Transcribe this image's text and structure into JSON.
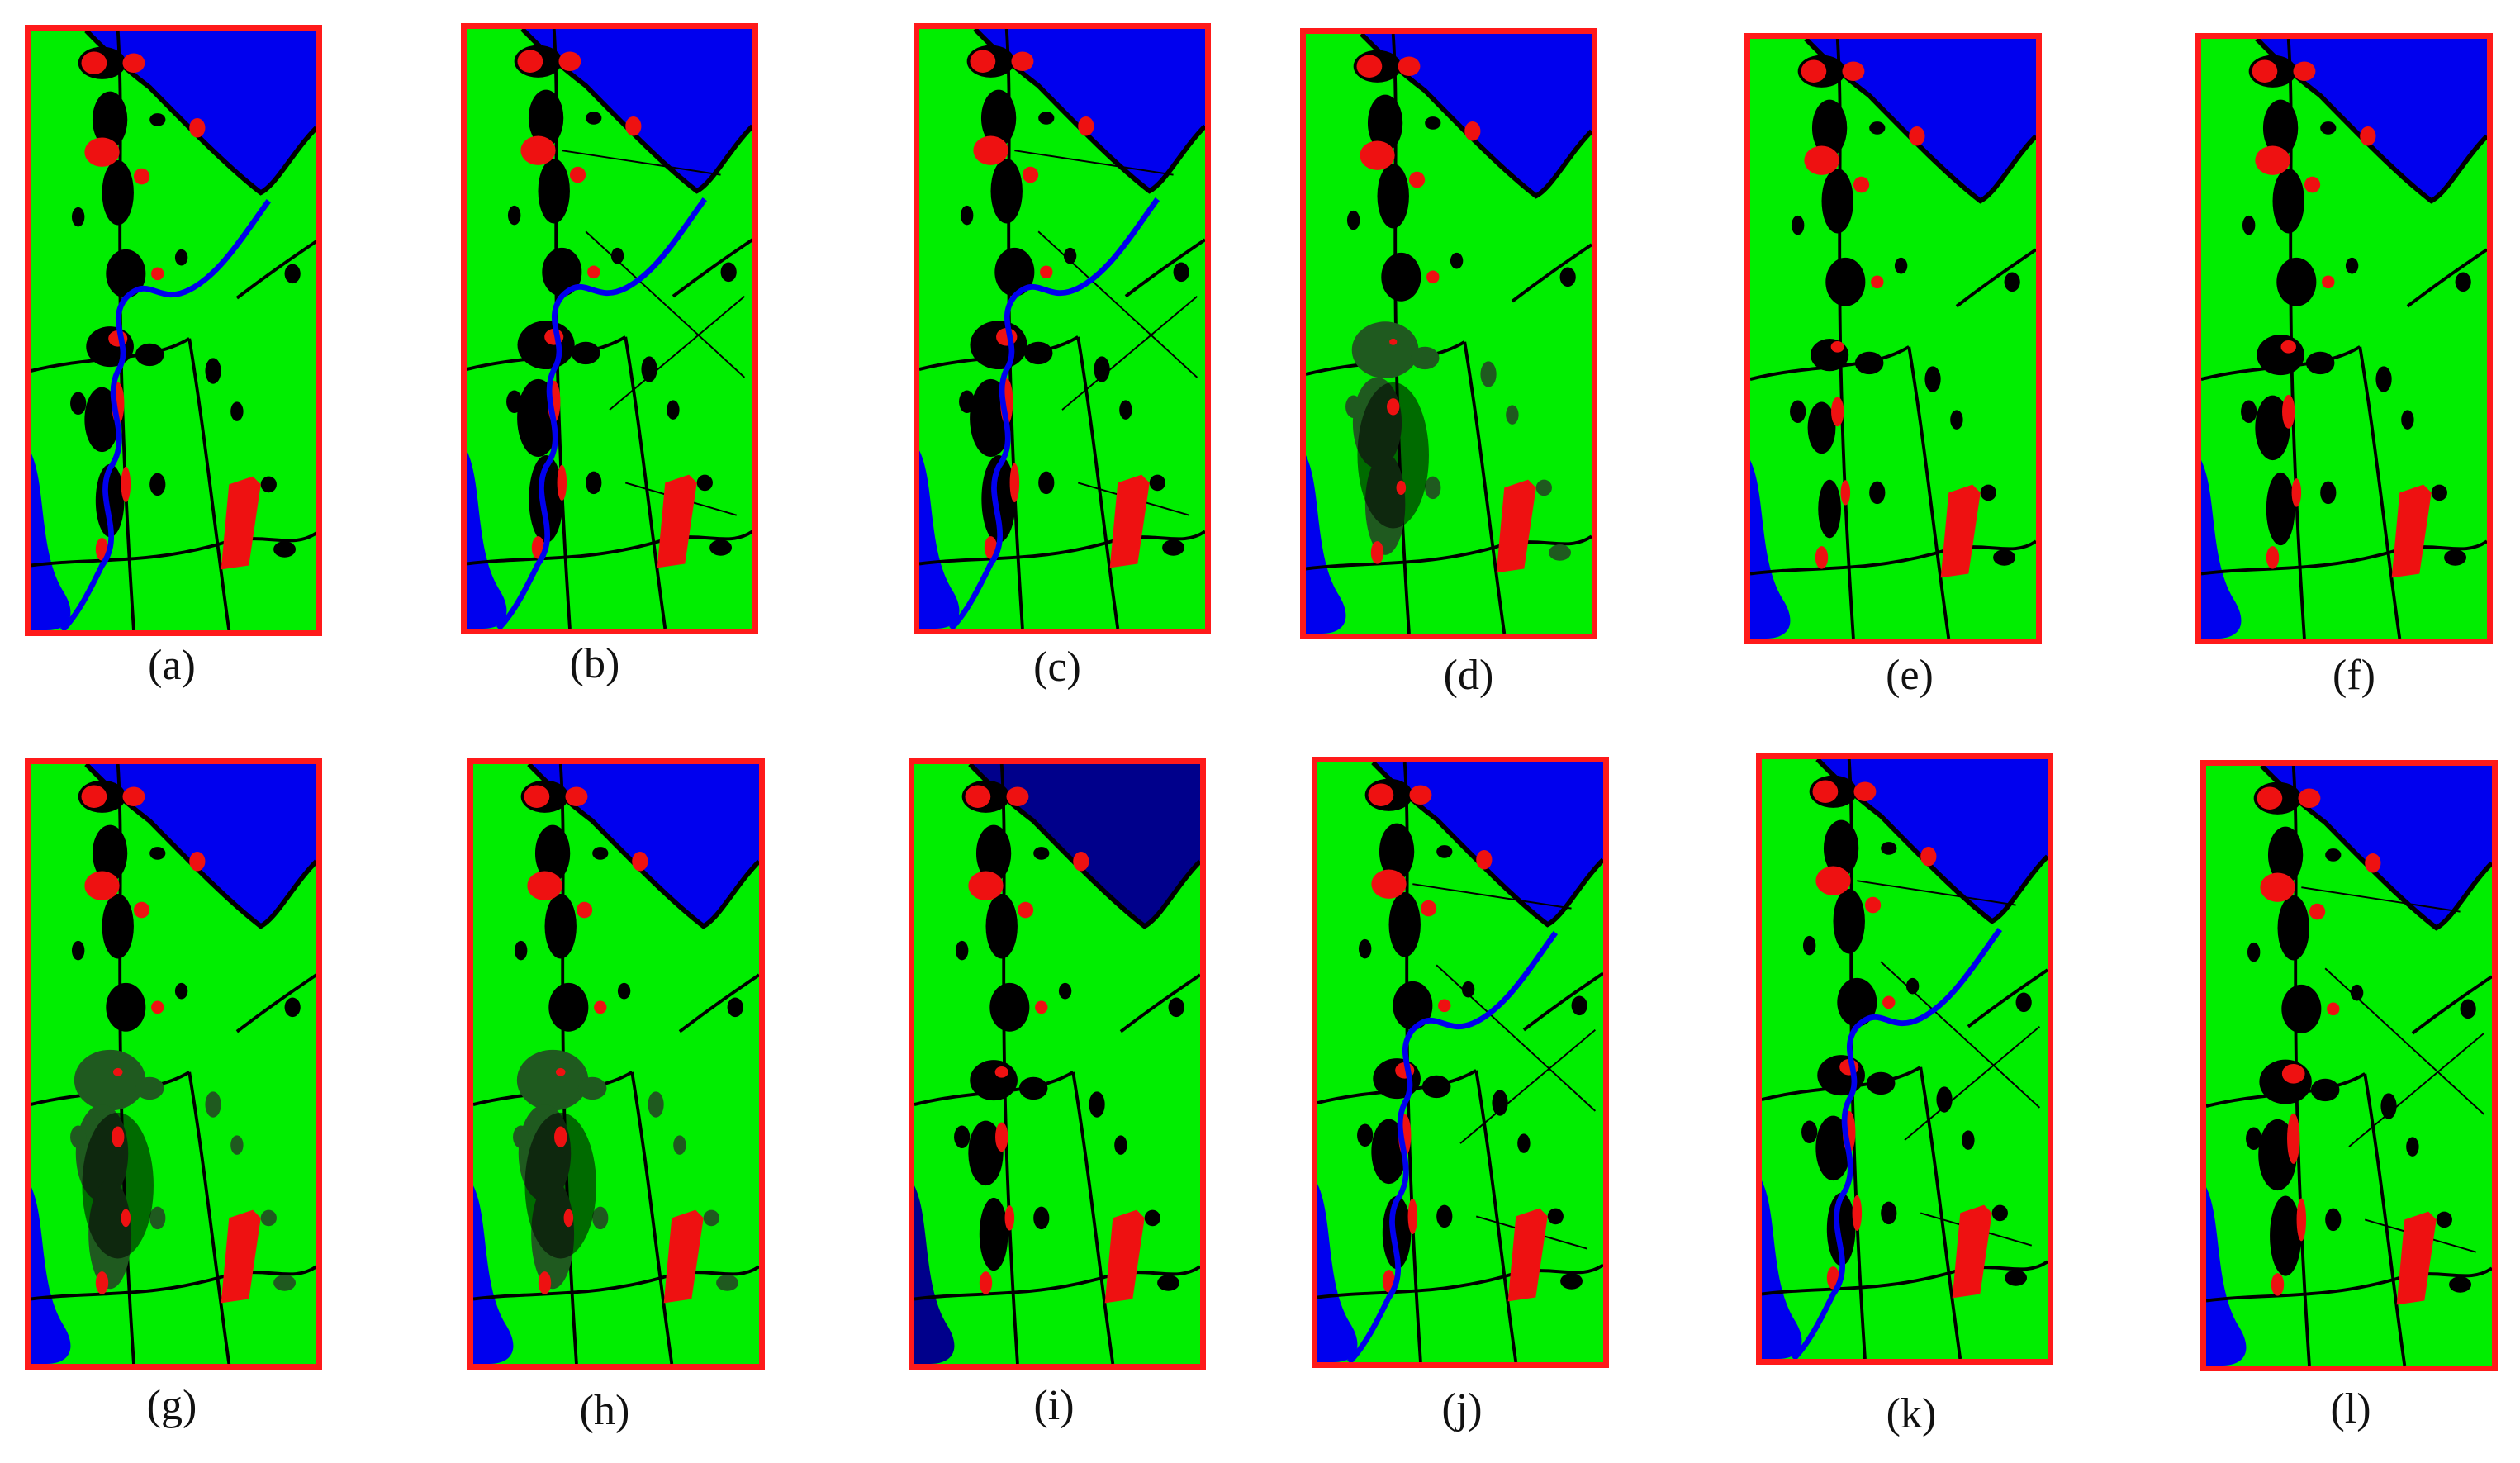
{
  "colors": {
    "border": "#ff1a1a",
    "land": "#00ee00",
    "water": "#0000ee",
    "urban": "#ee1111",
    "unclassified": "#000000"
  },
  "panels": [
    {
      "label": "(a)"
    },
    {
      "label": "(b)"
    },
    {
      "label": "(c)"
    },
    {
      "label": "(d)"
    },
    {
      "label": "(e)"
    },
    {
      "label": "(f)"
    },
    {
      "label": "(g)"
    },
    {
      "label": "(h)"
    },
    {
      "label": "(i)"
    },
    {
      "label": "(j)"
    },
    {
      "label": "(k)"
    },
    {
      "label": "(l)"
    }
  ]
}
